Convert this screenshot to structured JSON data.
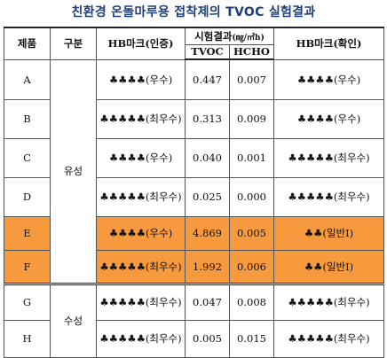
{
  "title": "친환경 온돌마루용 접착제의 TVOC 실험결과",
  "headers": {
    "product": "제품",
    "category": "구분",
    "hb_cert": "HB마크(인증)",
    "test_result": "시험결과",
    "test_unit": "(㎎/㎡h)",
    "tvoc": "TVOC",
    "hcho": "HCHO",
    "hb_confirm": "HB마크(확인)"
  },
  "groups": {
    "oil": "유성",
    "water": "수성"
  },
  "rows": [
    {
      "product": "A",
      "hb_cert": "♣♣♣♣(우수)",
      "tvoc": "0.447",
      "hcho": "0.007",
      "hb_confirm": "♣♣♣♣(우수)",
      "highlight": false
    },
    {
      "product": "B",
      "hb_cert": "♣♣♣♣♣(최우수)",
      "tvoc": "0.313",
      "hcho": "0.009",
      "hb_confirm": "♣♣♣♣(우수)",
      "highlight": false
    },
    {
      "product": "C",
      "hb_cert": "♣♣♣♣(우수)",
      "tvoc": "0.040",
      "hcho": "0.001",
      "hb_confirm": "♣♣♣♣♣(최우수)",
      "highlight": false
    },
    {
      "product": "D",
      "hb_cert": "♣♣♣♣♣(최우수)",
      "tvoc": "0.025",
      "hcho": "0.000",
      "hb_confirm": "♣♣♣♣♣(최우수)",
      "highlight": false
    },
    {
      "product": "E",
      "hb_cert": "♣♣♣♣(우수)",
      "tvoc": "4.869",
      "hcho": "0.005",
      "hb_confirm": "♣♣(일반Ⅰ)",
      "highlight": true
    },
    {
      "product": "F",
      "hb_cert": "♣♣♣♣♣(최우수)",
      "tvoc": "1.992",
      "hcho": "0.006",
      "hb_confirm": "♣♣(일반Ⅰ)",
      "highlight": true
    },
    {
      "product": "G",
      "hb_cert": "♣♣♣♣♣(최우수)",
      "tvoc": "0.047",
      "hcho": "0.008",
      "hb_confirm": "♣♣♣♣♣(최우수)",
      "highlight": false
    },
    {
      "product": "H",
      "hb_cert": "♣♣♣♣♣(최우수)",
      "tvoc": "0.005",
      "hcho": "0.015",
      "hb_confirm": "♣♣♣♣♣(최우수)",
      "highlight": false
    }
  ],
  "colors": {
    "title": "#1f3f7a",
    "highlight": "#f79a3e"
  }
}
